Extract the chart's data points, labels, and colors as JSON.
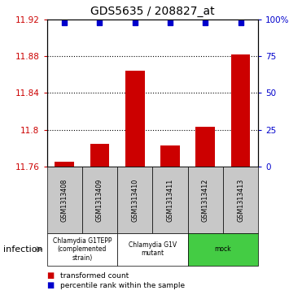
{
  "title": "GDS5635 / 208827_at",
  "samples": [
    "GSM1313408",
    "GSM1313409",
    "GSM1313410",
    "GSM1313411",
    "GSM1313412",
    "GSM1313413"
  ],
  "bar_values": [
    11.765,
    11.785,
    11.864,
    11.783,
    11.803,
    11.882
  ],
  "bar_base": 11.76,
  "bar_color": "#cc0000",
  "blue_dot_values": [
    11.916,
    11.916,
    11.916,
    11.916,
    11.916,
    11.916
  ],
  "blue_dot_color": "#0000cc",
  "ylim_left": [
    11.76,
    11.92
  ],
  "yticks_left": [
    11.76,
    11.8,
    11.84,
    11.88,
    11.92
  ],
  "ytick_labels_left": [
    "11.76",
    "11.8",
    "11.84",
    "11.88",
    "11.92"
  ],
  "ylim_right": [
    0,
    100
  ],
  "yticks_right": [
    0,
    25,
    50,
    75,
    100
  ],
  "ytick_labels_right": [
    "0",
    "25",
    "50",
    "75",
    "100%"
  ],
  "groups": [
    {
      "label": "Chlamydia G1TEPP\n(complemented\nstrain)",
      "start": 0,
      "end": 2,
      "color": "#ffffff"
    },
    {
      "label": "Chlamydia G1V\nmutant",
      "start": 2,
      "end": 4,
      "color": "#ffffff"
    },
    {
      "label": "mock",
      "start": 4,
      "end": 6,
      "color": "#44cc44"
    }
  ],
  "factor_label": "infection",
  "legend_items": [
    {
      "color": "#cc0000",
      "label": "transformed count"
    },
    {
      "color": "#0000cc",
      "label": "percentile rank within the sample"
    }
  ],
  "title_fontsize": 10,
  "tick_fontsize": 7.5,
  "bar_width": 0.55
}
